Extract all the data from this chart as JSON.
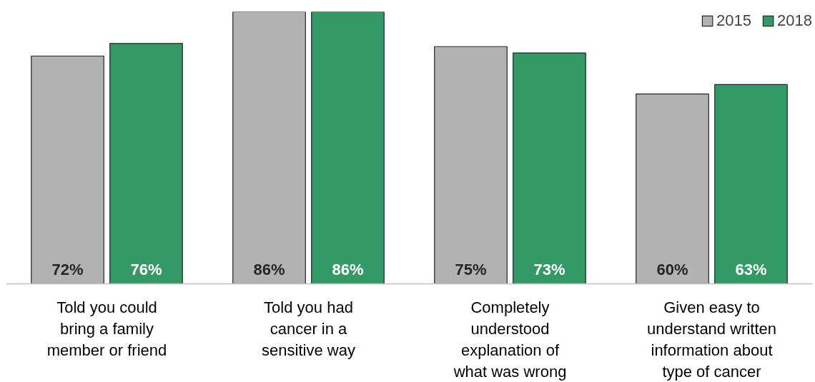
{
  "chart_data": {
    "type": "bar",
    "categories": [
      "Told you could bring a family member or friend",
      "Told you had cancer in a sensitive way",
      "Completely understood explanation of what was wrong",
      "Given easy to understand written information about type of cancer"
    ],
    "series": [
      {
        "name": "2015",
        "color": "#b2b2b2",
        "values": [
          72,
          86,
          75,
          60
        ],
        "value_labels": [
          "72%",
          "86%",
          "75%",
          "60%"
        ]
      },
      {
        "name": "2018",
        "color": "#339966",
        "values": [
          76,
          86,
          73,
          63
        ],
        "value_labels": [
          "76%",
          "86%",
          "73%",
          "63%"
        ]
      }
    ],
    "tick_labels": "x",
    "legend": "top right",
    "grid": false
  }
}
